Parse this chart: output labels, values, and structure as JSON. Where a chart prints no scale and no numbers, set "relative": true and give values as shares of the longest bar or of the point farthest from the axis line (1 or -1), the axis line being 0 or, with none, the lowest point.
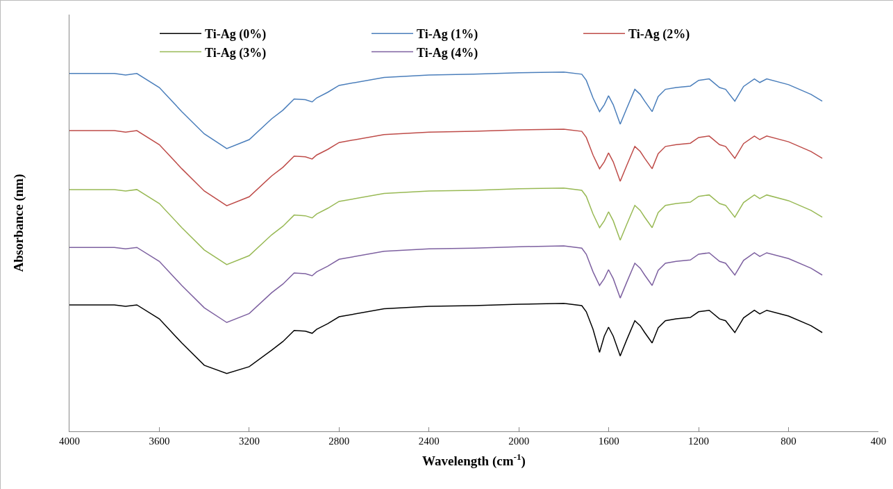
{
  "chart_data": {
    "type": "line",
    "relative": true,
    "xlabel": "Wavelength (cm$^{-1}$)",
    "ylabel": "Absorbance (nm)",
    "xlim": [
      4000,
      400
    ],
    "xticks": [
      4000,
      3600,
      3200,
      2800,
      2400,
      2000,
      1600,
      1200,
      800,
      400
    ],
    "x": [
      4000,
      3800,
      3750,
      3700,
      3600,
      3500,
      3400,
      3300,
      3200,
      3100,
      3050,
      3000,
      2950,
      2920,
      2900,
      2850,
      2800,
      2600,
      2400,
      2200,
      2000,
      1800,
      1720,
      1700,
      1670,
      1641,
      1620,
      1601,
      1580,
      1549,
      1520,
      1484,
      1460,
      1440,
      1407,
      1380,
      1348,
      1300,
      1237,
      1200,
      1153,
      1107,
      1080,
      1039,
      1000,
      952,
      928,
      897,
      800,
      700,
      650
    ],
    "grid": false,
    "legend": "top",
    "marker": "none",
    "line_style": "solid",
    "series": [
      {
        "name": "Ti-Ag (0%)",
        "color": "#000000",
        "values": [
          0.352,
          0.352,
          0.348,
          0.352,
          0.313,
          0.246,
          0.184,
          0.161,
          0.18,
          0.226,
          0.25,
          0.281,
          0.279,
          0.273,
          0.284,
          0.3,
          0.319,
          0.341,
          0.348,
          0.35,
          0.354,
          0.356,
          0.35,
          0.333,
          0.284,
          0.22,
          0.265,
          0.29,
          0.265,
          0.21,
          0.255,
          0.308,
          0.294,
          0.275,
          0.246,
          0.288,
          0.308,
          0.313,
          0.317,
          0.333,
          0.337,
          0.313,
          0.308,
          0.275,
          0.316,
          0.337,
          0.327,
          0.337,
          0.321,
          0.294,
          0.275
        ]
      },
      {
        "name": "Ti-Ag (1%)",
        "color": "#4a7ebb",
        "values": [
          0.996,
          0.996,
          0.992,
          0.996,
          0.957,
          0.89,
          0.828,
          0.787,
          0.812,
          0.87,
          0.894,
          0.925,
          0.923,
          0.917,
          0.928,
          0.944,
          0.963,
          0.985,
          0.992,
          0.994,
          0.998,
          1,
          0.994,
          0.977,
          0.928,
          0.89,
          0.909,
          0.934,
          0.909,
          0.855,
          0.899,
          0.952,
          0.938,
          0.919,
          0.89,
          0.932,
          0.952,
          0.957,
          0.961,
          0.977,
          0.981,
          0.957,
          0.952,
          0.919,
          0.96,
          0.981,
          0.971,
          0.981,
          0.965,
          0.938,
          0.919
        ]
      },
      {
        "name": "Ti-Ag (2%)",
        "color": "#be4b48",
        "values": [
          0.837,
          0.837,
          0.833,
          0.837,
          0.798,
          0.731,
          0.669,
          0.628,
          0.653,
          0.711,
          0.735,
          0.766,
          0.764,
          0.758,
          0.769,
          0.785,
          0.804,
          0.826,
          0.833,
          0.835,
          0.839,
          0.841,
          0.835,
          0.818,
          0.769,
          0.731,
          0.75,
          0.775,
          0.75,
          0.696,
          0.74,
          0.793,
          0.779,
          0.76,
          0.731,
          0.773,
          0.793,
          0.798,
          0.802,
          0.818,
          0.822,
          0.798,
          0.793,
          0.76,
          0.801,
          0.822,
          0.812,
          0.822,
          0.806,
          0.779,
          0.76
        ]
      },
      {
        "name": "Ti-Ag (3%)",
        "color": "#98b954",
        "values": [
          0.673,
          0.673,
          0.669,
          0.673,
          0.634,
          0.567,
          0.505,
          0.464,
          0.489,
          0.547,
          0.571,
          0.602,
          0.6,
          0.594,
          0.605,
          0.621,
          0.64,
          0.662,
          0.669,
          0.671,
          0.675,
          0.677,
          0.671,
          0.654,
          0.605,
          0.567,
          0.586,
          0.611,
          0.586,
          0.532,
          0.576,
          0.629,
          0.615,
          0.596,
          0.567,
          0.609,
          0.629,
          0.634,
          0.638,
          0.654,
          0.658,
          0.634,
          0.629,
          0.596,
          0.637,
          0.658,
          0.648,
          0.658,
          0.642,
          0.615,
          0.596
        ]
      },
      {
        "name": "Ti-Ag (4%)",
        "color": "#7d60a0",
        "values": [
          0.512,
          0.512,
          0.508,
          0.512,
          0.473,
          0.406,
          0.344,
          0.303,
          0.328,
          0.386,
          0.41,
          0.441,
          0.439,
          0.433,
          0.444,
          0.46,
          0.479,
          0.501,
          0.508,
          0.51,
          0.514,
          0.516,
          0.51,
          0.493,
          0.444,
          0.406,
          0.425,
          0.45,
          0.425,
          0.371,
          0.415,
          0.468,
          0.454,
          0.435,
          0.406,
          0.448,
          0.468,
          0.473,
          0.477,
          0.493,
          0.497,
          0.473,
          0.468,
          0.435,
          0.476,
          0.497,
          0.487,
          0.497,
          0.481,
          0.454,
          0.435
        ]
      }
    ]
  }
}
